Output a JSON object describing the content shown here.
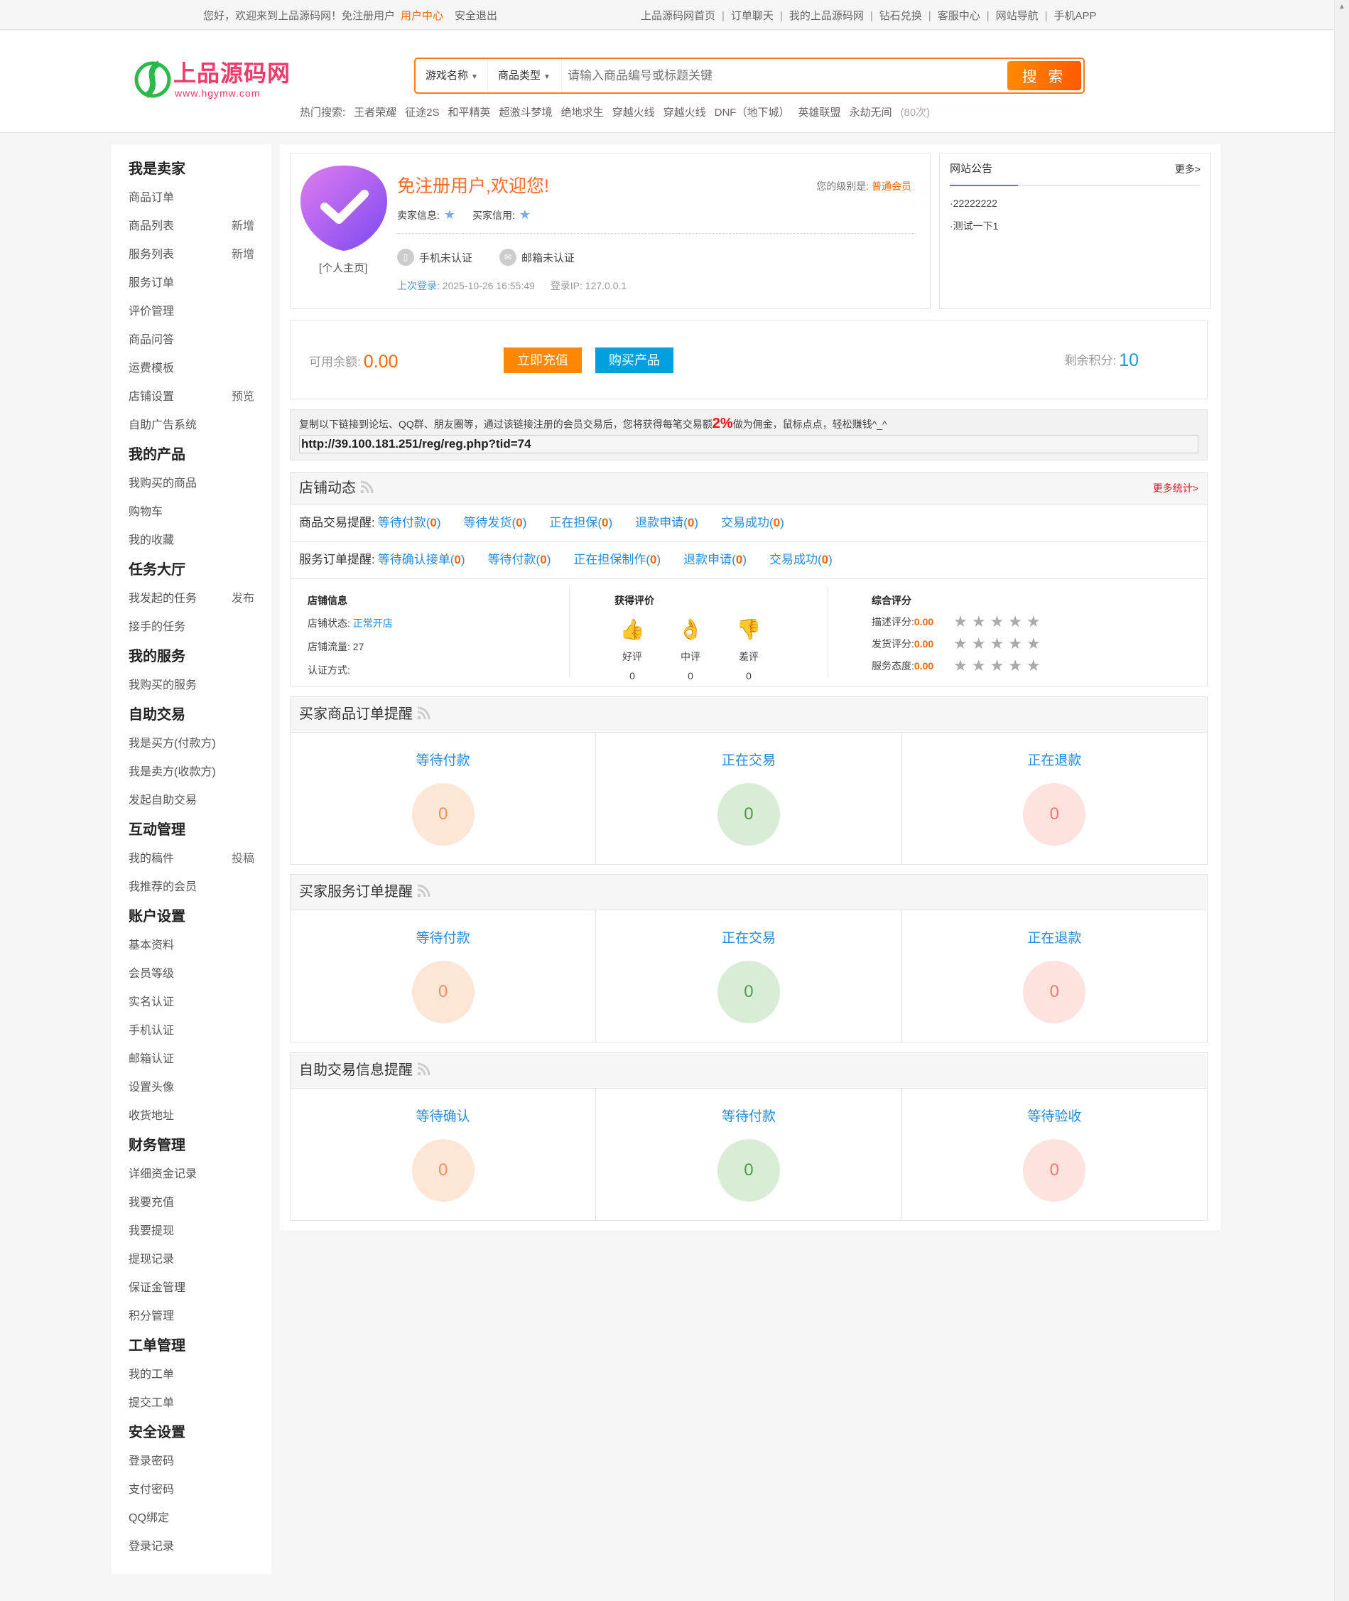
{
  "topbar": {
    "greeting": "您好，欢迎来到上品源码网！免注册用户",
    "user_center": "用户中心",
    "logout": "安全退出",
    "nav": [
      "上品源码网首页",
      "订单聊天",
      "我的上品源码网",
      "钻石兑换",
      "客服中心",
      "网站导航",
      "手机APP"
    ]
  },
  "logo": {
    "text": "上品源码网",
    "url": "www.hgymw.com"
  },
  "search": {
    "game_select": "游戏名称",
    "type_select": "商品类型",
    "placeholder": "请输入商品编号或标题关键",
    "button": "搜 索"
  },
  "hot": {
    "label": "热门搜索:",
    "items": [
      "王者荣耀",
      "征途2S",
      "和平精英",
      "超激斗梦境",
      "绝地求生",
      "穿越火线",
      "穿越火线",
      "DNF（地下城）",
      "英雄联盟",
      "永劫无间"
    ],
    "count": "(80次)"
  },
  "sidebar": [
    {
      "title": "我是卖家",
      "items": [
        {
          "label": "商品订单"
        },
        {
          "label": "商品列表",
          "extra": "新增"
        },
        {
          "label": "服务列表",
          "extra": "新增"
        },
        {
          "label": "服务订单"
        },
        {
          "label": "评价管理"
        },
        {
          "label": "商品问答"
        },
        {
          "label": "运费模板"
        },
        {
          "label": "店铺设置",
          "extra": "预览"
        },
        {
          "label": "自助广告系统"
        }
      ]
    },
    {
      "title": "我的产品",
      "items": [
        {
          "label": "我购买的商品"
        },
        {
          "label": "购物车"
        },
        {
          "label": "我的收藏"
        }
      ]
    },
    {
      "title": "任务大厅",
      "items": [
        {
          "label": "我发起的任务",
          "extra": "发布"
        },
        {
          "label": "接手的任务"
        }
      ]
    },
    {
      "title": "我的服务",
      "items": [
        {
          "label": "我购买的服务"
        }
      ]
    },
    {
      "title": "自助交易",
      "items": [
        {
          "label": "我是买方(付款方)"
        },
        {
          "label": "我是卖方(收款方)"
        },
        {
          "label": "发起自助交易"
        }
      ]
    },
    {
      "title": "互动管理",
      "items": [
        {
          "label": "我的稿件",
          "extra": "投稿"
        },
        {
          "label": "我推荐的会员"
        }
      ]
    },
    {
      "title": "账户设置",
      "items": [
        {
          "label": "基本资料"
        },
        {
          "label": "会员等级"
        },
        {
          "label": "实名认证"
        },
        {
          "label": "手机认证"
        },
        {
          "label": "邮箱认证"
        },
        {
          "label": "设置头像"
        },
        {
          "label": "收货地址"
        }
      ]
    },
    {
      "title": "财务管理",
      "items": [
        {
          "label": "详细资金记录"
        },
        {
          "label": "我要充值"
        },
        {
          "label": "我要提现"
        },
        {
          "label": "提现记录"
        },
        {
          "label": "保证金管理"
        },
        {
          "label": "积分管理"
        }
      ]
    },
    {
      "title": "工单管理",
      "items": [
        {
          "label": "我的工单"
        },
        {
          "label": "提交工单"
        }
      ]
    },
    {
      "title": "安全设置",
      "items": [
        {
          "label": "登录密码"
        },
        {
          "label": "支付密码"
        },
        {
          "label": "QQ绑定"
        },
        {
          "label": "登录记录"
        }
      ]
    }
  ],
  "user": {
    "home_link": "[个人主页]",
    "welcome": "免注册用户,欢迎您!",
    "level_label": "您的级别是:",
    "level": "普通会员",
    "seller_label": "卖家信息:",
    "buyer_label": "买家信用:",
    "phone": "手机未认证",
    "email": "邮箱未认证",
    "last_login_label": "上次登录:",
    "last_login": "2025-10-26 16:55:49",
    "ip_label": "登录IP:",
    "ip": "127.0.0.1"
  },
  "notice": {
    "title": "网站公告",
    "more": "更多>",
    "items": [
      "·22222222",
      "·测试一下1"
    ]
  },
  "balance": {
    "label": "可用余额:",
    "value": "0.00",
    "recharge": "立即充值",
    "buy": "购买产品",
    "points_label": "剩余积分:",
    "points": "10"
  },
  "referral": {
    "text_before": "复制以下链接到论坛、QQ群、朋友圈等，通过该链接注册的会员交易后，您将获得每笔交易额",
    "percent": "2%",
    "text_after": "做为佣金，鼠标点点，轻松赚钱^_^",
    "url": "http://39.100.181.251/reg/reg.php?tid=74"
  },
  "store": {
    "title": "店铺动态",
    "more": "更多统计>",
    "goods_label": "商品交易提醒:",
    "goods": [
      {
        "label": "等待付款",
        "count": "0"
      },
      {
        "label": "等待发货",
        "count": "0"
      },
      {
        "label": "正在担保",
        "count": "0"
      },
      {
        "label": "退款申请",
        "count": "0"
      },
      {
        "label": "交易成功",
        "count": "0"
      }
    ],
    "service_label": "服务订单提醒:",
    "service": [
      {
        "label": "等待确认接单",
        "count": "0"
      },
      {
        "label": "等待付款",
        "count": "0"
      },
      {
        "label": "正在担保制作",
        "count": "0"
      },
      {
        "label": "退款申请",
        "count": "0"
      },
      {
        "label": "交易成功",
        "count": "0"
      }
    ],
    "info_title": "店铺信息",
    "status_label": "店铺状态:",
    "status": "正常开店",
    "traffic_label": "店铺流量:",
    "traffic": "27",
    "auth_label": "认证方式:",
    "reviews_title": "获得评价",
    "reviews": [
      {
        "label": "好评",
        "count": "0",
        "icon": "thumbs-up"
      },
      {
        "label": "中评",
        "count": "0",
        "icon": "ok-hand"
      },
      {
        "label": "差评",
        "count": "0",
        "icon": "thumbs-down"
      }
    ],
    "score_title": "综合评分",
    "scores": [
      {
        "label": "描述评分:",
        "value": "0.00",
        "stars": 0
      },
      {
        "label": "发货评分:",
        "value": "0.00",
        "stars": 0
      },
      {
        "label": "服务态度:",
        "value": "0.00",
        "stars": 0
      }
    ]
  },
  "panels": [
    {
      "title": "买家商品订单提醒",
      "cells": [
        {
          "label": "等待付款",
          "count": "0"
        },
        {
          "label": "正在交易",
          "count": "0"
        },
        {
          "label": "正在退款",
          "count": "0"
        }
      ]
    },
    {
      "title": "买家服务订单提醒",
      "cells": [
        {
          "label": "等待付款",
          "count": "0"
        },
        {
          "label": "正在交易",
          "count": "0"
        },
        {
          "label": "正在退款",
          "count": "0"
        }
      ]
    },
    {
      "title": "自助交易信息提醒",
      "cells": [
        {
          "label": "等待确认",
          "count": "0"
        },
        {
          "label": "等待付款",
          "count": "0"
        },
        {
          "label": "等待验收",
          "count": "0"
        }
      ]
    }
  ],
  "colors": {
    "accent": "#ff6600",
    "link": "#2a8ad8",
    "recharge": "#ff8800",
    "buy": "#00a0e0"
  }
}
